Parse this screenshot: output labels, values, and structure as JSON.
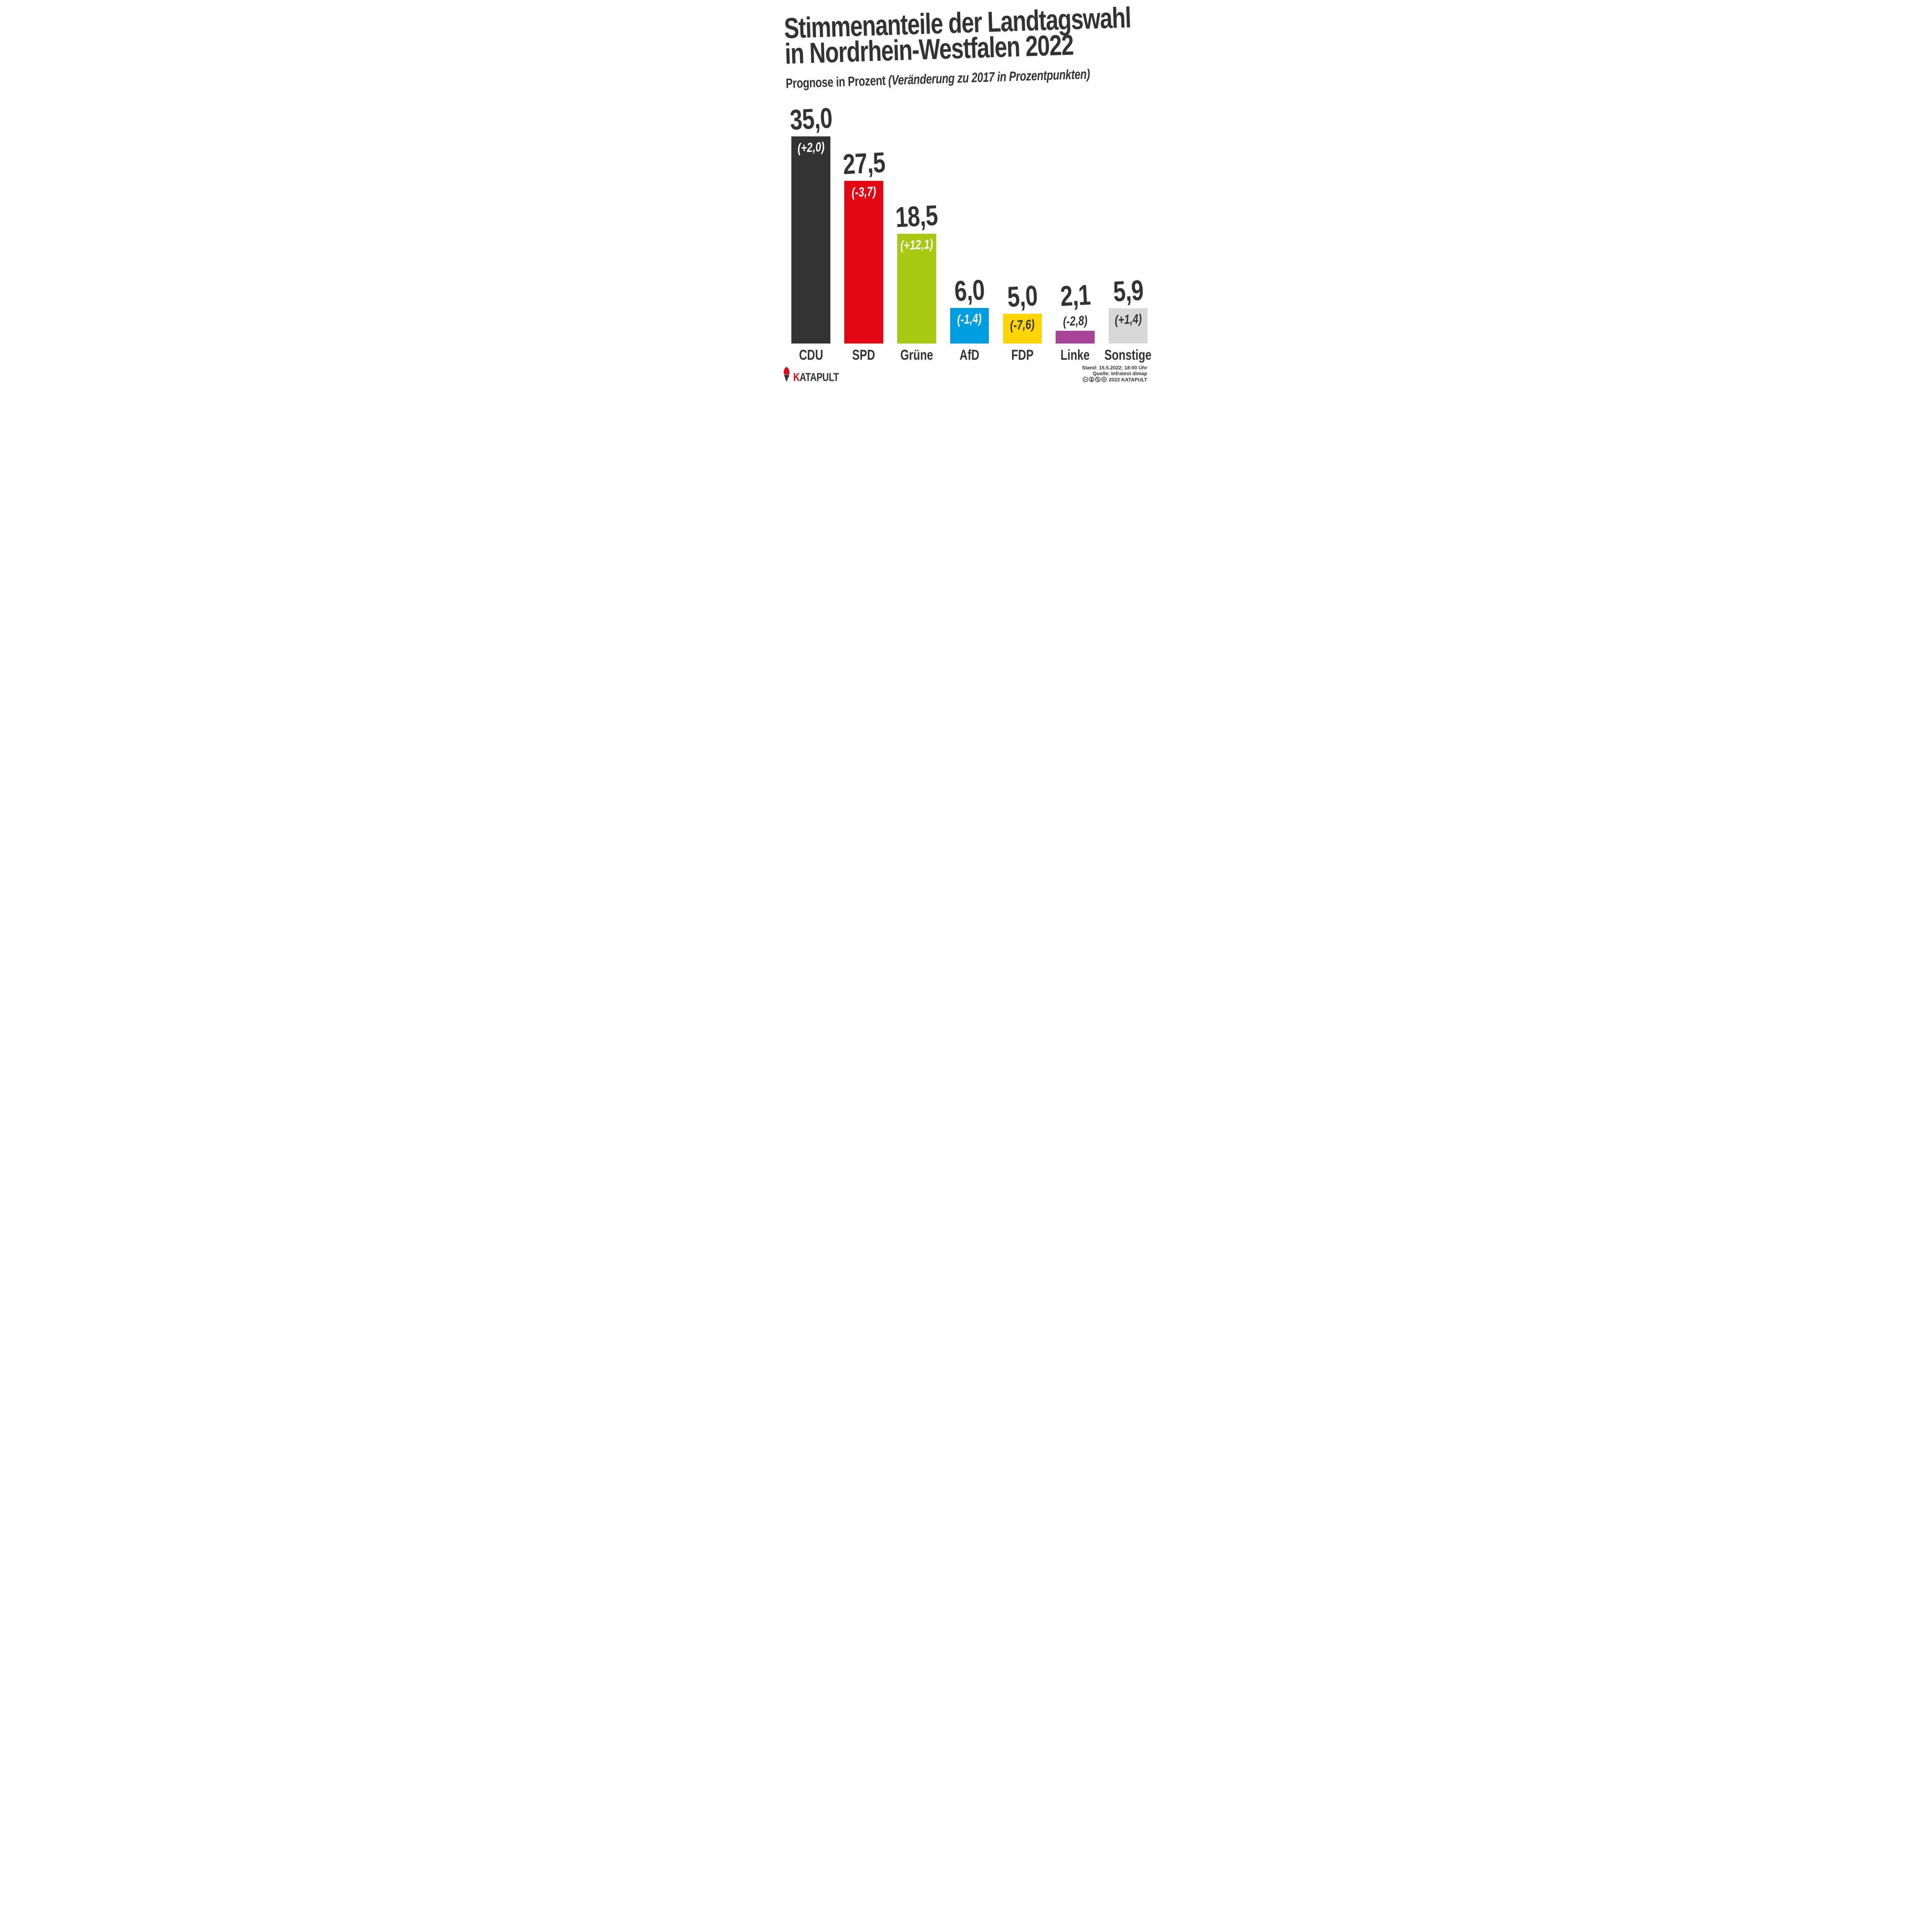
{
  "title": {
    "line1": "Stimmenanteile der Landtagswahl",
    "line2": "in Nordrhein-Westfalen 2022"
  },
  "subtitle": {
    "lead": "Prognose in Prozent ",
    "paren": "(Veränderung zu 2017 in Prozentpunkten)"
  },
  "chart_data": {
    "type": "bar",
    "title": "Stimmenanteile der Landtagswahl in Nordrhein-Westfalen 2022",
    "subtitle": "Prognose in Prozent (Veränderung zu 2017 in Prozentpunkten)",
    "unit": "Prozent",
    "ylim": [
      0,
      35
    ],
    "grid": false,
    "legend": "none",
    "categories": [
      "CDU",
      "SPD",
      "Grüne",
      "AfD",
      "FDP",
      "Linke",
      "Sonstige"
    ],
    "values": [
      35.0,
      27.5,
      18.5,
      6.0,
      5.0,
      2.1,
      5.9
    ],
    "value_labels": [
      "35,0",
      "27,5",
      "18,5",
      "6,0",
      "5,0",
      "2,1",
      "5,9"
    ],
    "change_vs_2017": [
      2.0,
      -3.7,
      12.1,
      -1.4,
      -7.6,
      -2.8,
      1.4
    ],
    "change_labels": [
      "(+2,0)",
      "(-3,7)",
      "(+12,1)",
      "(-1,4)",
      "(-7,6)",
      "(-2,8)",
      "(+1,4)"
    ],
    "bar_colors": [
      "#333333",
      "#e30613",
      "#a8c813",
      "#009ee0",
      "#ffd500",
      "#a84497",
      "#d8d8d8"
    ],
    "change_label_colors": [
      "#ffffff",
      "#ffffff",
      "#ffffff",
      "#ffffff",
      "#333333",
      "#333333",
      "#333333"
    ],
    "change_label_inside": [
      true,
      true,
      true,
      true,
      true,
      false,
      true
    ]
  },
  "footer": {
    "brand": {
      "k": "K",
      "rest": "ATAPULT"
    },
    "stand": "Stand: 15.5.2022; 18:00 Uhr",
    "quelle": "Quelle: Infratest dimap",
    "license_year": "2022 KATAPULT",
    "license_icons": [
      "cc",
      "by",
      "nc",
      "nd"
    ]
  },
  "colors": {
    "ink": "#333333",
    "background": "#ffffff",
    "brand_red": "#e30613"
  }
}
